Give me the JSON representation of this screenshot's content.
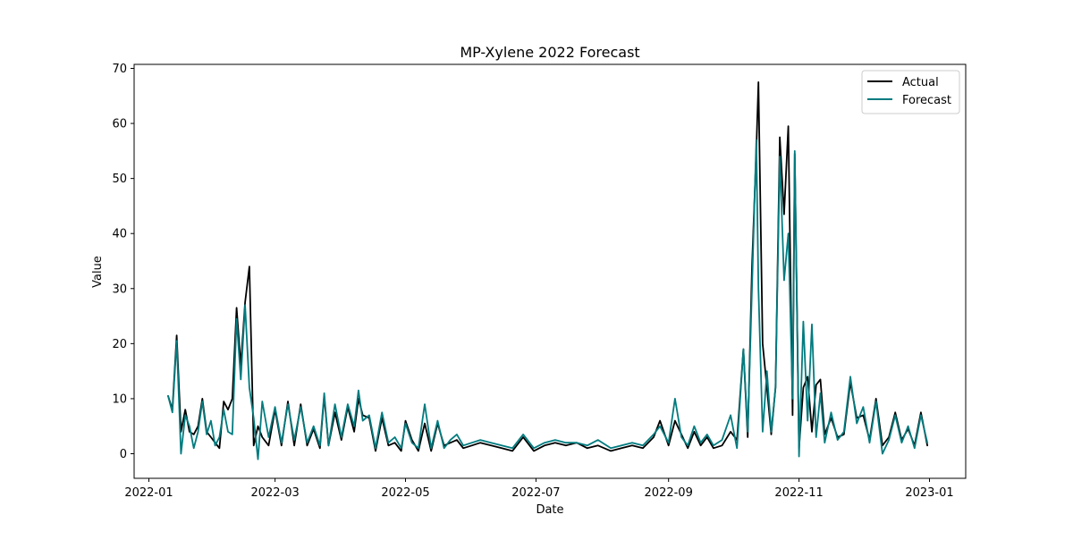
{
  "chart_data": {
    "type": "line",
    "title": "MP-Xylene 2022 Forecast",
    "xlabel": "Date",
    "ylabel": "Value",
    "xlim": [
      "2022-01-01",
      "2023-01-01"
    ],
    "ylim": [
      0,
      70
    ],
    "x_ticks": [
      "2022-01",
      "2022-03",
      "2022-05",
      "2022-07",
      "2022-09",
      "2022-11",
      "2023-01"
    ],
    "y_ticks": [
      0,
      10,
      20,
      30,
      40,
      50,
      60,
      70
    ],
    "grid": false,
    "legend": "top-right",
    "series": [
      {
        "name": "Actual",
        "color": "#000000",
        "points": [
          [
            "2022-01-10",
            10.5
          ],
          [
            "2022-01-12",
            8
          ],
          [
            "2022-01-14",
            21.5
          ],
          [
            "2022-01-16",
            4
          ],
          [
            "2022-01-18",
            8
          ],
          [
            "2022-01-20",
            4
          ],
          [
            "2022-01-22",
            3.5
          ],
          [
            "2022-01-24",
            5
          ],
          [
            "2022-01-26",
            10
          ],
          [
            "2022-01-28",
            4
          ],
          [
            "2022-01-30",
            3
          ],
          [
            "2022-02-01",
            2
          ],
          [
            "2022-02-03",
            1
          ],
          [
            "2022-02-05",
            9.5
          ],
          [
            "2022-02-07",
            8
          ],
          [
            "2022-02-09",
            10
          ],
          [
            "2022-02-11",
            26.5
          ],
          [
            "2022-02-13",
            16
          ],
          [
            "2022-02-15",
            27.5
          ],
          [
            "2022-02-17",
            34
          ],
          [
            "2022-02-19",
            1.5
          ],
          [
            "2022-02-21",
            5
          ],
          [
            "2022-02-23",
            3
          ],
          [
            "2022-02-26",
            1.5
          ],
          [
            "2022-03-01",
            8
          ],
          [
            "2022-03-04",
            1.5
          ],
          [
            "2022-03-07",
            9.5
          ],
          [
            "2022-03-10",
            1.5
          ],
          [
            "2022-03-13",
            9
          ],
          [
            "2022-03-16",
            1.5
          ],
          [
            "2022-03-19",
            4.5
          ],
          [
            "2022-03-22",
            1
          ],
          [
            "2022-03-24",
            10.5
          ],
          [
            "2022-03-26",
            1.5
          ],
          [
            "2022-03-29",
            7.5
          ],
          [
            "2022-04-01",
            2.5
          ],
          [
            "2022-04-04",
            8.5
          ],
          [
            "2022-04-07",
            4
          ],
          [
            "2022-04-09",
            10
          ],
          [
            "2022-04-11",
            7
          ],
          [
            "2022-04-14",
            6.5
          ],
          [
            "2022-04-17",
            0.5
          ],
          [
            "2022-04-20",
            6.5
          ],
          [
            "2022-04-23",
            1.5
          ],
          [
            "2022-04-26",
            2
          ],
          [
            "2022-04-29",
            0.5
          ],
          [
            "2022-05-01",
            6
          ],
          [
            "2022-05-04",
            2.5
          ],
          [
            "2022-05-07",
            0.5
          ],
          [
            "2022-05-10",
            5.5
          ],
          [
            "2022-05-13",
            0.5
          ],
          [
            "2022-05-16",
            5.5
          ],
          [
            "2022-05-19",
            1.5
          ],
          [
            "2022-05-22",
            2
          ],
          [
            "2022-05-25",
            2.5
          ],
          [
            "2022-05-28",
            1
          ],
          [
            "2022-06-01",
            1.5
          ],
          [
            "2022-06-05",
            2
          ],
          [
            "2022-06-10",
            1.5
          ],
          [
            "2022-06-15",
            1
          ],
          [
            "2022-06-20",
            0.5
          ],
          [
            "2022-06-25",
            3
          ],
          [
            "2022-06-30",
            0.5
          ],
          [
            "2022-07-05",
            1.5
          ],
          [
            "2022-07-10",
            2
          ],
          [
            "2022-07-15",
            1.5
          ],
          [
            "2022-07-20",
            2
          ],
          [
            "2022-07-25",
            1
          ],
          [
            "2022-07-30",
            1.5
          ],
          [
            "2022-08-05",
            0.5
          ],
          [
            "2022-08-10",
            1
          ],
          [
            "2022-08-15",
            1.5
          ],
          [
            "2022-08-20",
            1
          ],
          [
            "2022-08-25",
            3
          ],
          [
            "2022-08-28",
            6
          ],
          [
            "2022-09-01",
            1.5
          ],
          [
            "2022-09-04",
            6
          ],
          [
            "2022-09-07",
            3.5
          ],
          [
            "2022-09-10",
            1
          ],
          [
            "2022-09-13",
            4
          ],
          [
            "2022-09-16",
            1.5
          ],
          [
            "2022-09-19",
            3
          ],
          [
            "2022-09-22",
            1
          ],
          [
            "2022-09-26",
            1.5
          ],
          [
            "2022-09-30",
            4
          ],
          [
            "2022-10-03",
            2.5
          ],
          [
            "2022-10-06",
            19
          ],
          [
            "2022-10-08",
            3
          ],
          [
            "2022-10-10",
            34
          ],
          [
            "2022-10-12",
            55
          ],
          [
            "2022-10-13",
            67.5
          ],
          [
            "2022-10-15",
            20
          ],
          [
            "2022-10-17",
            12
          ],
          [
            "2022-10-19",
            3.5
          ],
          [
            "2022-10-21",
            12
          ],
          [
            "2022-10-23",
            57.5
          ],
          [
            "2022-10-25",
            43.5
          ],
          [
            "2022-10-27",
            59.5
          ],
          [
            "2022-10-29",
            7
          ],
          [
            "2022-10-30",
            54.5
          ],
          [
            "2022-11-01",
            1
          ],
          [
            "2022-11-03",
            12
          ],
          [
            "2022-11-05",
            14
          ],
          [
            "2022-11-07",
            4
          ],
          [
            "2022-11-09",
            12.5
          ],
          [
            "2022-11-11",
            13.5
          ],
          [
            "2022-11-13",
            3.5
          ],
          [
            "2022-11-16",
            6.5
          ],
          [
            "2022-11-19",
            3
          ],
          [
            "2022-11-22",
            3.5
          ],
          [
            "2022-11-25",
            13
          ],
          [
            "2022-11-28",
            6.5
          ],
          [
            "2022-12-01",
            7
          ],
          [
            "2022-12-04",
            2.5
          ],
          [
            "2022-12-07",
            10
          ],
          [
            "2022-12-10",
            1.5
          ],
          [
            "2022-12-13",
            3
          ],
          [
            "2022-12-16",
            7.5
          ],
          [
            "2022-12-19",
            2.5
          ],
          [
            "2022-12-22",
            4.5
          ],
          [
            "2022-12-25",
            1.5
          ],
          [
            "2022-12-28",
            7.5
          ],
          [
            "2022-12-31",
            1.5
          ]
        ]
      },
      {
        "name": "Forecast",
        "color": "#007b7f",
        "points": [
          [
            "2022-01-10",
            10.5
          ],
          [
            "2022-01-12",
            7.5
          ],
          [
            "2022-01-14",
            20.5
          ],
          [
            "2022-01-16",
            0
          ],
          [
            "2022-01-18",
            7
          ],
          [
            "2022-01-20",
            5
          ],
          [
            "2022-01-22",
            1
          ],
          [
            "2022-01-24",
            4
          ],
          [
            "2022-01-26",
            9.5
          ],
          [
            "2022-01-28",
            3.5
          ],
          [
            "2022-01-30",
            6
          ],
          [
            "2022-02-01",
            1.5
          ],
          [
            "2022-02-03",
            3
          ],
          [
            "2022-02-05",
            8
          ],
          [
            "2022-02-07",
            4
          ],
          [
            "2022-02-09",
            3.5
          ],
          [
            "2022-02-11",
            24.5
          ],
          [
            "2022-02-13",
            13.5
          ],
          [
            "2022-02-15",
            27
          ],
          [
            "2022-02-17",
            12
          ],
          [
            "2022-02-19",
            6.5
          ],
          [
            "2022-02-21",
            -1
          ],
          [
            "2022-02-23",
            9.5
          ],
          [
            "2022-02-26",
            3
          ],
          [
            "2022-03-01",
            8.5
          ],
          [
            "2022-03-04",
            2
          ],
          [
            "2022-03-07",
            9
          ],
          [
            "2022-03-10",
            2.5
          ],
          [
            "2022-03-13",
            8.5
          ],
          [
            "2022-03-16",
            2
          ],
          [
            "2022-03-19",
            5
          ],
          [
            "2022-03-22",
            1.5
          ],
          [
            "2022-03-24",
            11
          ],
          [
            "2022-03-26",
            1.5
          ],
          [
            "2022-03-29",
            9
          ],
          [
            "2022-04-01",
            3
          ],
          [
            "2022-04-04",
            9
          ],
          [
            "2022-04-07",
            5
          ],
          [
            "2022-04-09",
            11.5
          ],
          [
            "2022-04-11",
            6
          ],
          [
            "2022-04-14",
            7
          ],
          [
            "2022-04-17",
            1
          ],
          [
            "2022-04-20",
            7.5
          ],
          [
            "2022-04-23",
            2
          ],
          [
            "2022-04-26",
            3
          ],
          [
            "2022-04-29",
            1
          ],
          [
            "2022-05-01",
            5.5
          ],
          [
            "2022-05-04",
            2
          ],
          [
            "2022-05-07",
            1
          ],
          [
            "2022-05-10",
            9
          ],
          [
            "2022-05-13",
            1
          ],
          [
            "2022-05-16",
            6
          ],
          [
            "2022-05-19",
            1
          ],
          [
            "2022-05-22",
            2.5
          ],
          [
            "2022-05-25",
            3.5
          ],
          [
            "2022-05-28",
            1.5
          ],
          [
            "2022-06-01",
            2
          ],
          [
            "2022-06-05",
            2.5
          ],
          [
            "2022-06-10",
            2
          ],
          [
            "2022-06-15",
            1.5
          ],
          [
            "2022-06-20",
            1
          ],
          [
            "2022-06-25",
            3.5
          ],
          [
            "2022-06-30",
            1
          ],
          [
            "2022-07-05",
            2
          ],
          [
            "2022-07-10",
            2.5
          ],
          [
            "2022-07-15",
            2
          ],
          [
            "2022-07-20",
            2
          ],
          [
            "2022-07-25",
            1.5
          ],
          [
            "2022-07-30",
            2.5
          ],
          [
            "2022-08-05",
            1
          ],
          [
            "2022-08-10",
            1.5
          ],
          [
            "2022-08-15",
            2
          ],
          [
            "2022-08-20",
            1.5
          ],
          [
            "2022-08-25",
            3.5
          ],
          [
            "2022-08-28",
            5
          ],
          [
            "2022-09-01",
            2
          ],
          [
            "2022-09-04",
            10
          ],
          [
            "2022-09-07",
            3
          ],
          [
            "2022-09-10",
            1.5
          ],
          [
            "2022-09-13",
            5
          ],
          [
            "2022-09-16",
            2
          ],
          [
            "2022-09-19",
            3.5
          ],
          [
            "2022-09-22",
            1.5
          ],
          [
            "2022-09-26",
            2.5
          ],
          [
            "2022-09-30",
            7
          ],
          [
            "2022-10-03",
            1
          ],
          [
            "2022-10-06",
            19
          ],
          [
            "2022-10-08",
            4
          ],
          [
            "2022-10-10",
            30
          ],
          [
            "2022-10-12",
            57
          ],
          [
            "2022-10-13",
            30
          ],
          [
            "2022-10-15",
            4
          ],
          [
            "2022-10-17",
            15
          ],
          [
            "2022-10-19",
            4
          ],
          [
            "2022-10-21",
            12
          ],
          [
            "2022-10-23",
            54
          ],
          [
            "2022-10-25",
            31.5
          ],
          [
            "2022-10-27",
            40
          ],
          [
            "2022-10-29",
            10
          ],
          [
            "2022-10-30",
            55
          ],
          [
            "2022-11-01",
            -0.5
          ],
          [
            "2022-11-03",
            24
          ],
          [
            "2022-11-05",
            6
          ],
          [
            "2022-11-07",
            23.5
          ],
          [
            "2022-11-09",
            3
          ],
          [
            "2022-11-11",
            11
          ],
          [
            "2022-11-13",
            2
          ],
          [
            "2022-11-16",
            7.5
          ],
          [
            "2022-11-19",
            2.5
          ],
          [
            "2022-11-22",
            4
          ],
          [
            "2022-11-25",
            14
          ],
          [
            "2022-11-28",
            5.5
          ],
          [
            "2022-12-01",
            8.5
          ],
          [
            "2022-12-04",
            2
          ],
          [
            "2022-12-07",
            9.5
          ],
          [
            "2022-12-10",
            0
          ],
          [
            "2022-12-13",
            2.5
          ],
          [
            "2022-12-16",
            7
          ],
          [
            "2022-12-19",
            2
          ],
          [
            "2022-12-22",
            5
          ],
          [
            "2022-12-25",
            1
          ],
          [
            "2022-12-28",
            7
          ],
          [
            "2022-12-31",
            2
          ]
        ]
      }
    ]
  }
}
